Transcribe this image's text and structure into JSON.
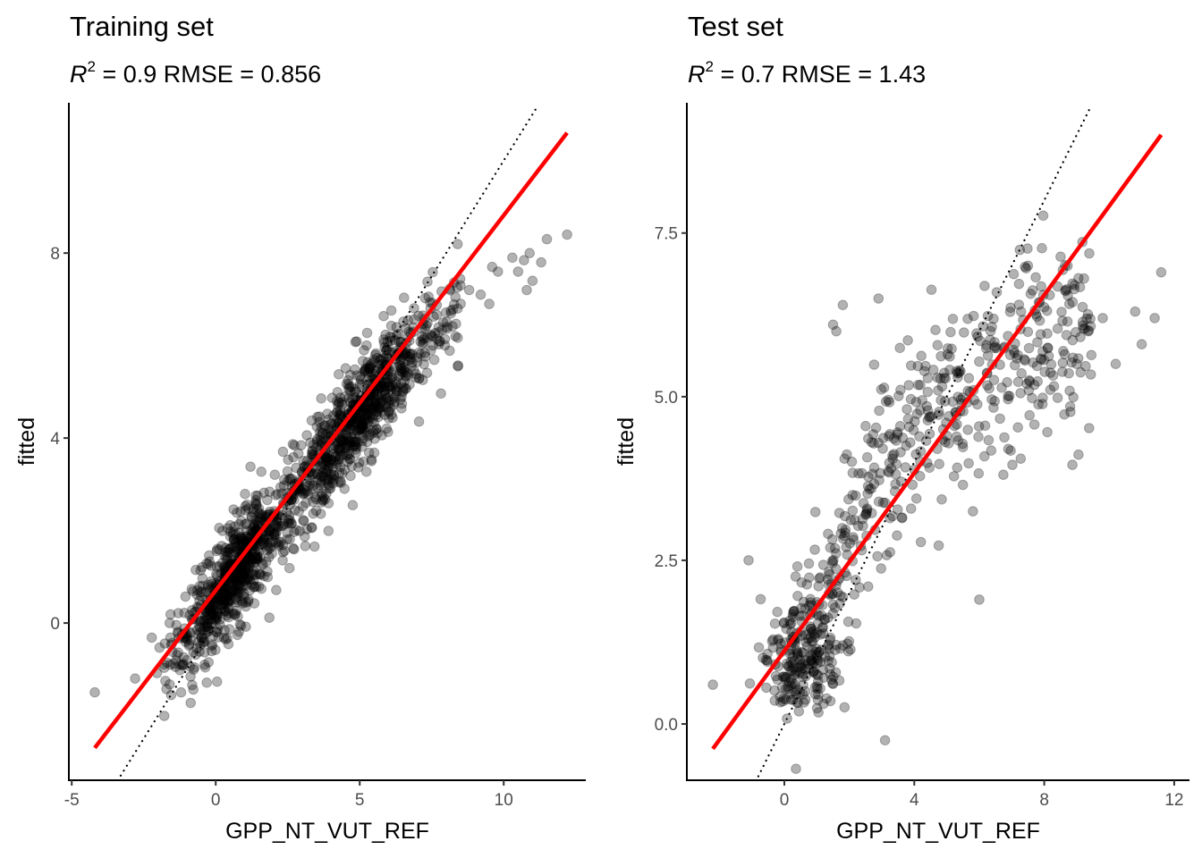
{
  "chart_data": [
    {
      "type": "scatter",
      "title": "Training set",
      "subtitle": {
        "r2_label": "R",
        "r2_sup": "2",
        "r2_value": " = 0.9  RMSE = 0.856"
      },
      "xlabel": "GPP_NT_VUT_REF",
      "ylabel": "fitted",
      "xlim": [
        -5.1,
        12.85
      ],
      "ylim": [
        -3.4,
        11.25
      ],
      "xticks": [
        -5,
        0,
        5,
        10
      ],
      "xtick_labels": [
        "-5",
        "0",
        "5",
        "10"
      ],
      "yticks": [
        0,
        4,
        8
      ],
      "ytick_labels": [
        "0",
        "4",
        "8"
      ],
      "grid": false,
      "metrics": {
        "r2": 0.9,
        "rmse": 0.856
      },
      "fit_line": {
        "x": [
          -4.2,
          12.2
        ],
        "y": [
          -2.7,
          10.6
        ],
        "color": "#ff0000"
      },
      "identity_line": {
        "x": [
          -3.3,
          11.2
        ],
        "y": [
          -3.3,
          11.2
        ]
      },
      "point_color": "#000000",
      "point_alpha": 0.3,
      "cloud": {
        "n": 1500,
        "x_range": [
          -1.8,
          8.5
        ],
        "slope": 0.8,
        "intercept": 0.55,
        "noise_sd": 0.55
      },
      "outliers": {
        "x": [
          -4.2,
          -2.8,
          -1.6,
          -1.0,
          8.5,
          9.2,
          9.8,
          10.3,
          10.5,
          11.0,
          11.5,
          12.2,
          11.3,
          10.8,
          7.9,
          8.4,
          9.6,
          10.9,
          9.5,
          8.8
        ],
        "y": [
          -1.5,
          -1.2,
          0.0,
          -0.3,
          7.3,
          7.1,
          7.6,
          7.9,
          7.6,
          7.4,
          8.3,
          8.4,
          7.8,
          7.2,
          6.5,
          6.8,
          7.7,
          8.0,
          6.9,
          7.2
        ]
      }
    },
    {
      "type": "scatter",
      "title": "Test set",
      "subtitle": {
        "r2_label": "R",
        "r2_sup": "2",
        "r2_value": " = 0.7  RMSE = 1.43"
      },
      "xlabel": "GPP_NT_VUT_REF",
      "ylabel": "fitted",
      "xlim": [
        -3.0,
        12.47
      ],
      "ylim": [
        -0.86,
        9.49
      ],
      "xticks": [
        0,
        4,
        8,
        12
      ],
      "xtick_labels": [
        "0",
        "4",
        "8",
        "12"
      ],
      "yticks": [
        0.0,
        2.5,
        5.0,
        7.5
      ],
      "ytick_labels": [
        "0.0",
        "2.5",
        "5.0",
        "7.5"
      ],
      "grid": false,
      "metrics": {
        "r2": 0.7,
        "rmse": 1.43
      },
      "fit_line": {
        "x": [
          -2.2,
          11.6
        ],
        "y": [
          -0.38,
          9.0
        ],
        "color": "#ff0000"
      },
      "identity_line": {
        "x": [
          -0.8,
          9.4
        ],
        "y": [
          -0.8,
          9.4
        ]
      },
      "point_color": "#000000",
      "point_alpha": 0.3,
      "cluster_low": {
        "n": 160,
        "center": [
          0.6,
          0.9
        ],
        "sd": [
          0.6,
          0.35
        ]
      },
      "cloud": {
        "n": 520,
        "x_range": [
          0.2,
          9.5
        ],
        "noise_sd": 0.75
      },
      "outliers": {
        "x": [
          -2.2,
          -1.1,
          3.1,
          6.0,
          11.6,
          11.4,
          11.0,
          10.8,
          10.2,
          9.8,
          9.0,
          1.5,
          1.6,
          2.9,
          1.8
        ],
        "y": [
          0.6,
          2.5,
          -0.25,
          1.9,
          6.9,
          6.2,
          5.8,
          6.3,
          5.5,
          6.2,
          5.5,
          6.1,
          6.0,
          6.5,
          6.4
        ]
      }
    }
  ]
}
